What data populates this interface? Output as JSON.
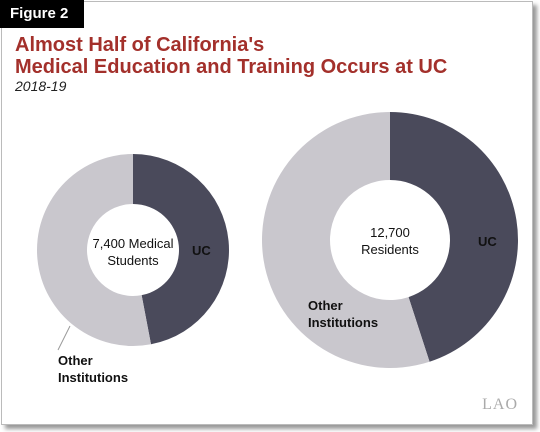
{
  "figure_label": "Figure 2",
  "title_lines": [
    "Almost Half of California's",
    "Medical Education and Training Occurs at UC"
  ],
  "subtitle": "2018-19",
  "chart_data": [
    {
      "type": "donut",
      "center_label": "7,400 Medical Students",
      "categories": [
        "UC",
        "Other Institutions"
      ],
      "values": [
        47,
        53
      ],
      "colors": [
        "#4a4a5b",
        "#c9c7cd"
      ]
    },
    {
      "type": "donut",
      "center_label": "12,700 Residents",
      "categories": [
        "UC",
        "Other Institutions"
      ],
      "values": [
        45,
        55
      ],
      "colors": [
        "#4a4a5b",
        "#c9c7cd"
      ]
    }
  ],
  "logo": "LAO"
}
